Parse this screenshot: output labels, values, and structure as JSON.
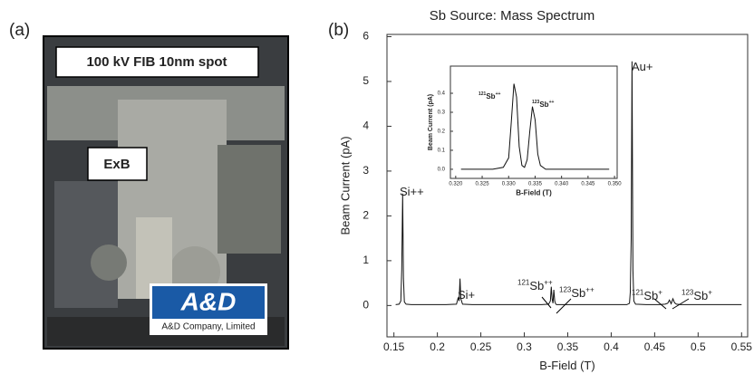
{
  "panel_a": {
    "label": "(a)",
    "boxes": [
      "100 kV FIB 10nm spot",
      "ExB"
    ],
    "logo": "A&D",
    "logo_caption": "A&D Company, Limited"
  },
  "chart_data": [
    {
      "type": "line",
      "panel_label": "(b)",
      "title": "Sb Source: Mass Spectrum",
      "x_label": "B-Field (T)",
      "y_label": "Beam Current (pA)",
      "xlim": [
        0.142,
        0.557
      ],
      "ylim": [
        -0.7,
        6.05
      ],
      "xticks": [
        0.15,
        0.2,
        0.25,
        0.3,
        0.35,
        0.4,
        0.45,
        0.5,
        0.55
      ],
      "yticks": [
        0,
        1,
        2,
        3,
        4,
        5,
        6
      ],
      "color": "#111111",
      "x": [
        0.152,
        0.156,
        0.158,
        0.159,
        0.16,
        0.161,
        0.162,
        0.164,
        0.17,
        0.19,
        0.21,
        0.222,
        0.224,
        0.225,
        0.226,
        0.227,
        0.229,
        0.24,
        0.27,
        0.3,
        0.32,
        0.328,
        0.33,
        0.331,
        0.332,
        0.333,
        0.334,
        0.335,
        0.336,
        0.337,
        0.34,
        0.37,
        0.4,
        0.418,
        0.421,
        0.422,
        0.423,
        0.424,
        0.425,
        0.426,
        0.428,
        0.44,
        0.455,
        0.462,
        0.465,
        0.467,
        0.469,
        0.471,
        0.473,
        0.475,
        0.48,
        0.5,
        0.53,
        0.55
      ],
      "values": [
        0.02,
        0.03,
        0.1,
        0.8,
        2.5,
        0.6,
        0.08,
        0.03,
        0.02,
        0.02,
        0.02,
        0.03,
        0.18,
        0.1,
        0.6,
        0.15,
        0.03,
        0.02,
        0.02,
        0.02,
        0.02,
        0.03,
        0.1,
        0.42,
        0.15,
        0.05,
        0.35,
        0.1,
        0.04,
        0.02,
        0.02,
        0.02,
        0.02,
        0.02,
        0.05,
        0.3,
        1.5,
        5.45,
        0.8,
        0.1,
        0.03,
        0.02,
        0.02,
        0.03,
        0.05,
        0.12,
        0.04,
        0.15,
        0.06,
        0.03,
        0.02,
        0.02,
        0.02,
        0.02
      ],
      "annotations": [
        {
          "element": "Si++"
        },
        {
          "element": "Si+"
        },
        {
          "element": "Au+"
        },
        {
          "mass": "121",
          "element": "Sb",
          "charge": "++"
        },
        {
          "mass": "123",
          "element": "Sb",
          "charge": "++"
        },
        {
          "mass": "121",
          "element": "Sb",
          "charge": "+"
        },
        {
          "mass": "123",
          "element": "Sb",
          "charge": "+"
        }
      ]
    },
    {
      "type": "line",
      "x_label": "B-Field (T)",
      "y_label": "Beam Current (pA)",
      "xlim": [
        0.319,
        0.3505
      ],
      "ylim": [
        -0.048,
        0.543
      ],
      "xticks": [
        {
          "value": 0.32,
          "label": "0.320"
        },
        0.325,
        {
          "value": 0.33,
          "label": "0.330"
        },
        0.335,
        {
          "value": 0.34,
          "label": "0.340"
        },
        0.345,
        {
          "value": 0.35,
          "label": "0.350"
        }
      ],
      "yticks": [
        {
          "value": 0,
          "label": "0.0"
        },
        0.1,
        0.2,
        0.3,
        0.4
      ],
      "color": "#111111",
      "x": [
        0.321,
        0.324,
        0.327,
        0.329,
        0.33,
        0.3305,
        0.331,
        0.3315,
        0.332,
        0.3325,
        0.333,
        0.3335,
        0.334,
        0.3345,
        0.335,
        0.3355,
        0.336,
        0.337,
        0.34,
        0.345,
        0.349
      ],
      "values": [
        0.0,
        0.0,
        0.0,
        0.01,
        0.06,
        0.25,
        0.45,
        0.38,
        0.12,
        0.02,
        0.01,
        0.05,
        0.2,
        0.33,
        0.26,
        0.08,
        0.02,
        0.0,
        0.0,
        0.0,
        0.0
      ],
      "annotations": [
        {
          "mass": "121",
          "element": "Sb",
          "charge": "++"
        },
        {
          "mass": "123",
          "element": "Sb",
          "charge": "++"
        }
      ]
    }
  ]
}
